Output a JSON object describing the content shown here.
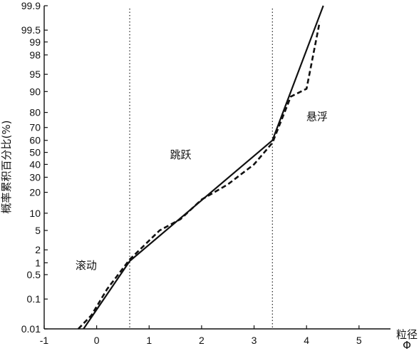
{
  "chart_data": {
    "type": "line",
    "xlabel": "粒径",
    "xunit": "Φ",
    "ylabel": "概率累积百分比(%)",
    "x_scale": "linear",
    "y_scale": "probability",
    "xlim": [
      -1,
      5.6
    ],
    "ylim": [
      0.01,
      99.9
    ],
    "x_ticks": [
      -1,
      0,
      1,
      2,
      3,
      4,
      5
    ],
    "y_ticks": [
      0.01,
      0.1,
      0.5,
      1,
      2,
      5,
      10,
      20,
      30,
      40,
      50,
      60,
      70,
      80,
      90,
      95,
      98,
      99,
      99.5,
      99.9
    ],
    "y_tick_labels": [
      "0.01",
      "0.1",
      "0.5",
      "1",
      "2",
      "5",
      "10",
      "20",
      "30",
      "40",
      "50",
      "60",
      "70",
      "80",
      "90",
      "95",
      "98",
      "99",
      "99.5",
      "99.9"
    ],
    "grid": false,
    "vertical_dotted_lines": [
      0.63,
      3.35
    ],
    "region_labels": [
      {
        "text": "滚动",
        "x": -0.2,
        "y": 0.7
      },
      {
        "text": "跳跃",
        "x": 1.6,
        "y": 45
      },
      {
        "text": "悬浮",
        "x": 4.2,
        "y": 75
      }
    ],
    "series": [
      {
        "style": "solid",
        "x": [
          -0.25,
          0.63,
          3.35,
          4.32
        ],
        "y": [
          0.01,
          1.1,
          60,
          99.9
        ]
      },
      {
        "style": "dashed",
        "x": [
          -0.35,
          -0.1,
          0.2,
          0.63,
          1.2,
          1.6,
          2.0,
          2.5,
          3.0,
          3.35,
          3.7,
          4.0,
          4.25
        ],
        "y": [
          0.01,
          0.03,
          0.2,
          1.2,
          5,
          8,
          16,
          25,
          40,
          58,
          88,
          91,
          99.7
        ]
      }
    ]
  }
}
